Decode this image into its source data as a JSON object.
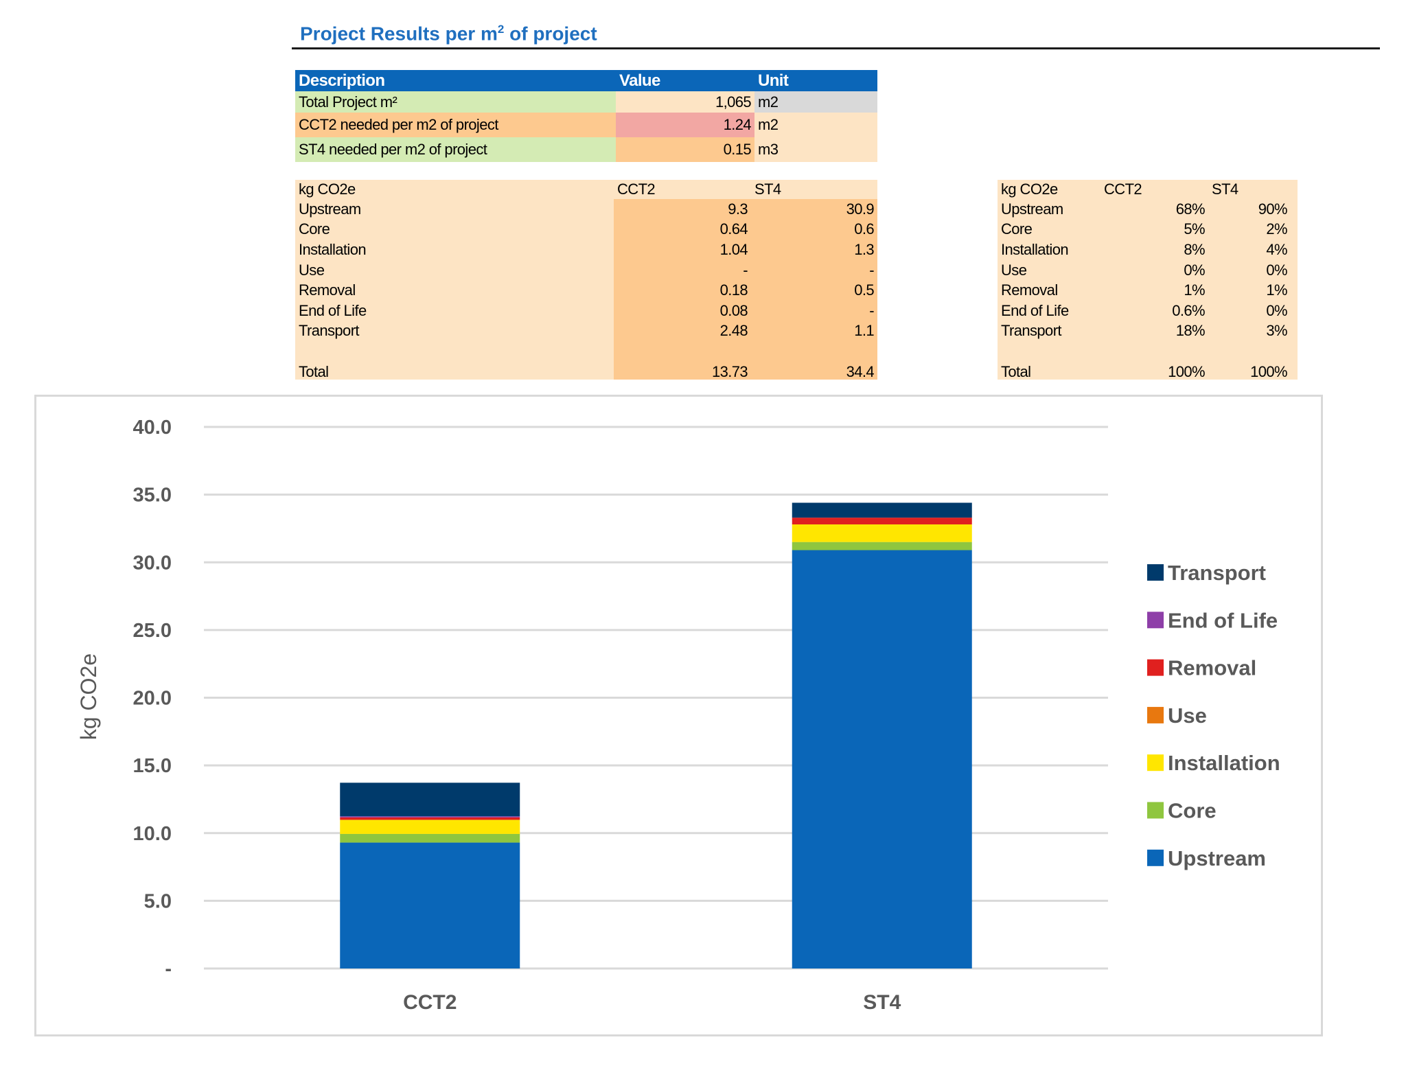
{
  "header": {
    "title_prefix": "Project Results per m",
    "title_sup": "2",
    "title_suffix": " of project"
  },
  "summary_table": {
    "columns": [
      "Description",
      "Value",
      "Unit"
    ],
    "rows": [
      {
        "description": "Total Project m²",
        "value": "1,065",
        "unit": "m2",
        "colors": [
          "#d4ebb4",
          "#fde4c4",
          "#d9d9d9"
        ]
      },
      {
        "description": "CCT2 needed per m2 of project",
        "value": "1.24",
        "unit": "m2",
        "colors": [
          "#fdc98f",
          "#f2a7a3",
          "#fde4c4"
        ]
      },
      {
        "description": "ST4 needed per m2 of project",
        "value": "0.15",
        "unit": "m3",
        "colors": [
          "#d4ebb4",
          "#fdc98f",
          "#fde4c4"
        ]
      }
    ]
  },
  "absolute_table": {
    "columns": [
      "kg CO2e",
      "CCT2",
      "ST4"
    ],
    "rows": [
      [
        "Upstream",
        "9.3",
        "30.9"
      ],
      [
        "Core",
        "0.64",
        "0.6"
      ],
      [
        "Installation",
        "1.04",
        "1.3"
      ],
      [
        "Use",
        "-",
        "-"
      ],
      [
        "Removal",
        "0.18",
        "0.5"
      ],
      [
        "End of Life",
        "0.08",
        "-"
      ],
      [
        "Transport",
        "2.48",
        "1.1"
      ],
      [
        "",
        "",
        ""
      ],
      [
        "Total",
        "13.73",
        "34.4"
      ]
    ]
  },
  "percent_table": {
    "columns": [
      "kg CO2e",
      "CCT2",
      "ST4"
    ],
    "rows": [
      [
        "Upstream",
        "68%",
        "90%"
      ],
      [
        "Core",
        "5%",
        "2%"
      ],
      [
        "Installation",
        "8%",
        "4%"
      ],
      [
        "Use",
        "0%",
        "0%"
      ],
      [
        "Removal",
        "1%",
        "1%"
      ],
      [
        "End of Life",
        "0.6%",
        "0%"
      ],
      [
        "Transport",
        "18%",
        "3%"
      ],
      [
        "",
        "",
        ""
      ],
      [
        "Total",
        "100%",
        "100%"
      ]
    ]
  },
  "chart_data": {
    "type": "bar",
    "stacked": true,
    "title": "",
    "xlabel": "",
    "ylabel": "kg CO2e",
    "ylim": [
      0,
      40
    ],
    "ytick_step": 5,
    "ytick_labels": [
      "-",
      "5.0",
      "10.0",
      "15.0",
      "20.0",
      "25.0",
      "30.0",
      "35.0",
      "40.0"
    ],
    "grid": true,
    "legend_position": "right",
    "categories": [
      "CCT2",
      "ST4"
    ],
    "series": [
      {
        "name": "Upstream",
        "color": "#0a66b8",
        "values": [
          9.3,
          30.9
        ]
      },
      {
        "name": "Core",
        "color": "#8fc63f",
        "values": [
          0.64,
          0.6
        ]
      },
      {
        "name": "Installation",
        "color": "#ffe600",
        "values": [
          1.04,
          1.3
        ]
      },
      {
        "name": "Use",
        "color": "#e8780f",
        "values": [
          0,
          0
        ]
      },
      {
        "name": "Removal",
        "color": "#e0201f",
        "values": [
          0.18,
          0.5
        ]
      },
      {
        "name": "End of Life",
        "color": "#8e3fa8",
        "values": [
          0.08,
          0
        ]
      },
      {
        "name": "Transport",
        "color": "#003a6b",
        "values": [
          2.48,
          1.1
        ]
      }
    ]
  }
}
